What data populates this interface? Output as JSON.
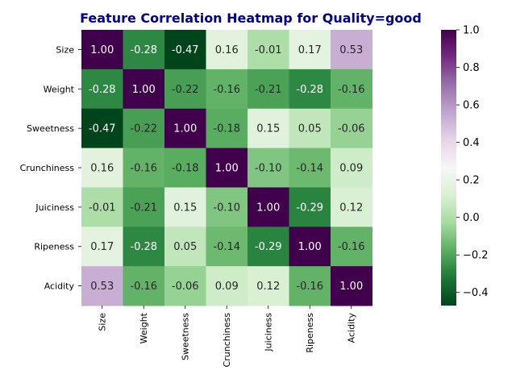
{
  "chart_data": {
    "type": "heatmap",
    "title": "Feature Correlation Heatmap for Quality=good",
    "xlabel": "",
    "ylabel": "",
    "x_categories": [
      "Size",
      "Weight",
      "Sweetness",
      "Crunchiness",
      "Juiciness",
      "Ripeness",
      "Acidity"
    ],
    "y_categories": [
      "Size",
      "Weight",
      "Sweetness",
      "Crunchiness",
      "Juiciness",
      "Ripeness",
      "Acidity"
    ],
    "values": [
      [
        1.0,
        -0.28,
        -0.47,
        0.16,
        -0.01,
        0.17,
        0.53
      ],
      [
        -0.28,
        1.0,
        -0.22,
        -0.16,
        -0.21,
        -0.28,
        -0.16
      ],
      [
        -0.47,
        -0.22,
        1.0,
        -0.18,
        0.15,
        0.05,
        -0.06
      ],
      [
        0.16,
        -0.16,
        -0.18,
        1.0,
        -0.1,
        -0.14,
        0.09
      ],
      [
        -0.01,
        -0.21,
        0.15,
        -0.1,
        1.0,
        -0.29,
        0.12
      ],
      [
        0.17,
        -0.28,
        0.05,
        -0.14,
        -0.29,
        1.0,
        -0.16
      ],
      [
        0.53,
        -0.16,
        -0.06,
        0.09,
        0.12,
        -0.16,
        1.0
      ]
    ],
    "annotation_format": "0.00",
    "colormap": "PRGn_r",
    "color_range": [
      -0.47,
      1.0
    ],
    "colorbar": {
      "ticks": [
        -0.4,
        -0.2,
        0.0,
        0.2,
        0.4,
        0.6,
        0.8,
        1.0
      ],
      "tick_labels": [
        "−0.4",
        "−0.2",
        "0.0",
        "0.2",
        "0.4",
        "0.6",
        "0.8",
        "1.0"
      ],
      "placement": "right"
    },
    "colors": {
      "title": "#00008b",
      "low": "#00441b",
      "mid": "#f7f7f7",
      "high": "#40004b"
    }
  }
}
